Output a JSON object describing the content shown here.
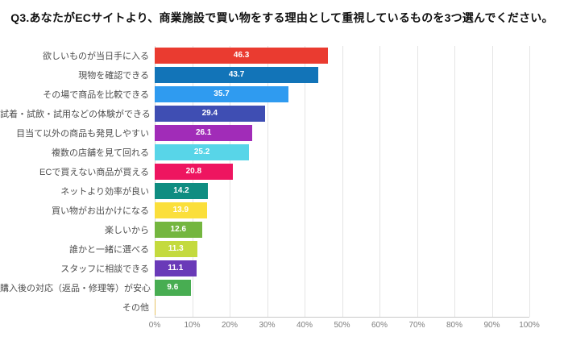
{
  "title": "Q3.あなたがECサイトより、商業施設で買い物をする理由として重視しているものを3つ選んでください。",
  "chart_data": {
    "type": "bar",
    "orientation": "horizontal",
    "title": "Q3.あなたがECサイトより、商業施設で買い物をする理由として重視しているものを3つ選んでください。",
    "xlabel": "",
    "ylabel": "",
    "xlim": [
      0,
      100
    ],
    "grid": true,
    "legend": "none",
    "x_tick_labels": [
      "0%",
      "10%",
      "20%",
      "30%",
      "40%",
      "50%",
      "60%",
      "70%",
      "80%",
      "90%",
      "100%"
    ],
    "categories": [
      "欲しいものが当日手に入る",
      "現物を確認できる",
      "その場で商品を比較できる",
      "試着・試飲・試用などの体験ができる",
      "目当て以外の商品も発見しやすい",
      "複数の店舗を見て回れる",
      "ECで買えない商品が買える",
      "ネットより効率が良い",
      "買い物がお出かけになる",
      "楽しいから",
      "誰かと一緒に選べる",
      "スタッフに相談できる",
      "購入後の対応（返品・修理等）が安心",
      "その他"
    ],
    "values": [
      46.3,
      43.7,
      35.7,
      29.4,
      26.1,
      25.2,
      20.8,
      14.2,
      13.9,
      12.6,
      11.3,
      11.1,
      9.6,
      0.3
    ],
    "value_labels": [
      "46.3",
      "43.7",
      "35.7",
      "29.4",
      "26.1",
      "25.2",
      "20.8",
      "14.2",
      "13.9",
      "12.6",
      "11.3",
      "11.1",
      "9.6",
      ""
    ],
    "bar_colors": [
      "#ea3b30",
      "#1274b8",
      "#2f9bf0",
      "#3f4eb3",
      "#a12cb8",
      "#58d5e8",
      "#ee1560",
      "#0f8d81",
      "#fbdf3b",
      "#74b63f",
      "#c4da3e",
      "#6a3ab8",
      "#48ad52",
      "#e8c468"
    ],
    "value_label_color": "#ffffff",
    "gridline_color": "#e4e4e4"
  }
}
